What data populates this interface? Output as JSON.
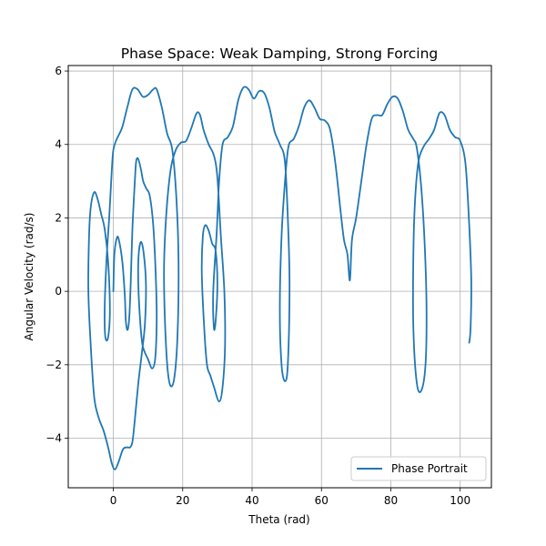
{
  "chart_data": {
    "type": "line",
    "title": "Phase Space: Weak Damping, Strong Forcing",
    "xlabel": "Theta (rad)",
    "ylabel": "Angular Velocity (rad/s)",
    "xlim": [
      -13,
      109
    ],
    "ylim": [
      -5.35,
      6.15
    ],
    "xticks": [
      0,
      20,
      40,
      60,
      80,
      100
    ],
    "yticks": [
      -4,
      -2,
      0,
      2,
      4,
      6
    ],
    "grid": true,
    "legend_position": "lower-right",
    "series": [
      {
        "name": "Phase Portrait",
        "color": "#1f77b4",
        "points": [
          [
            0,
            0
          ],
          [
            0.3,
            1.0
          ],
          [
            1,
            1.45
          ],
          [
            1.6,
            1.4
          ],
          [
            2.6,
            0.8
          ],
          [
            3.3,
            -0.1
          ],
          [
            3.6,
            -0.8
          ],
          [
            4.1,
            -1.05
          ],
          [
            4.6,
            -0.7
          ],
          [
            5,
            0.2
          ],
          [
            5.5,
            1.7
          ],
          [
            6.2,
            3.0
          ],
          [
            6.6,
            3.55
          ],
          [
            7.2,
            3.6
          ],
          [
            8,
            3.3
          ],
          [
            8.6,
            3.0
          ],
          [
            9.5,
            2.8
          ],
          [
            10.5,
            2.6
          ],
          [
            11.5,
            1.8
          ],
          [
            12.2,
            0.5
          ],
          [
            12.5,
            -0.7
          ],
          [
            12.1,
            -1.8
          ],
          [
            11.2,
            -2.1
          ],
          [
            10,
            -1.85
          ],
          [
            8.5,
            -1.5
          ],
          [
            7.8,
            -0.9
          ],
          [
            7.2,
            0.2
          ],
          [
            7.3,
            1.0
          ],
          [
            8,
            1.35
          ],
          [
            8.8,
            1.0
          ],
          [
            9.4,
            0.2
          ],
          [
            9.1,
            -0.9
          ],
          [
            8.2,
            -1.7
          ],
          [
            7.2,
            -2.5
          ],
          [
            6.2,
            -3.5
          ],
          [
            5.5,
            -4.1
          ],
          [
            4.8,
            -4.25
          ],
          [
            4.0,
            -4.25
          ],
          [
            2.8,
            -4.3
          ],
          [
            1.5,
            -4.65
          ],
          [
            0.5,
            -4.85
          ],
          [
            -0.4,
            -4.7
          ],
          [
            -1.5,
            -4.25
          ],
          [
            -2.8,
            -3.8
          ],
          [
            -4.2,
            -3.45
          ],
          [
            -5.5,
            -2.9
          ],
          [
            -6.5,
            -1.5
          ],
          [
            -7.2,
            0.0
          ],
          [
            -7.0,
            1.5
          ],
          [
            -6.5,
            2.3
          ],
          [
            -5.5,
            2.7
          ],
          [
            -4.5,
            2.5
          ],
          [
            -3.5,
            2.1
          ],
          [
            -2.5,
            1.7
          ],
          [
            -1.5,
            0.8
          ],
          [
            -1.0,
            -0.5
          ],
          [
            -1.5,
            -1.25
          ],
          [
            -2.3,
            -1.25
          ],
          [
            -2.5,
            -0.5
          ],
          [
            -2.0,
            0.8
          ],
          [
            -1.2,
            2.0
          ],
          [
            -0.5,
            3.2
          ],
          [
            0,
            3.85
          ],
          [
            1,
            4.15
          ],
          [
            2.5,
            4.45
          ],
          [
            4.0,
            5.0
          ],
          [
            5.5,
            5.5
          ],
          [
            7,
            5.5
          ],
          [
            8.5,
            5.3
          ],
          [
            10,
            5.35
          ],
          [
            11.5,
            5.5
          ],
          [
            12.5,
            5.5
          ],
          [
            14,
            5.0
          ],
          [
            15.5,
            4.3
          ],
          [
            17,
            3.85
          ],
          [
            18.2,
            2.5
          ],
          [
            18.8,
            0.8
          ],
          [
            18.5,
            -1.2
          ],
          [
            17.5,
            -2.4
          ],
          [
            16.2,
            -2.5
          ],
          [
            15.2,
            -1.5
          ],
          [
            14.6,
            0.5
          ],
          [
            15.2,
            2.0
          ],
          [
            16.5,
            3.3
          ],
          [
            18,
            3.85
          ],
          [
            19.5,
            4.05
          ],
          [
            21,
            4.1
          ],
          [
            22.5,
            4.45
          ],
          [
            24,
            4.85
          ],
          [
            25,
            4.8
          ],
          [
            26,
            4.4
          ],
          [
            27.5,
            4.0
          ],
          [
            29,
            3.7
          ],
          [
            30,
            3.1
          ],
          [
            31,
            1.5
          ],
          [
            32,
            0
          ],
          [
            32.2,
            -1.5
          ],
          [
            31.5,
            -2.6
          ],
          [
            30.5,
            -3.0
          ],
          [
            29,
            -2.6
          ],
          [
            28,
            -2.3
          ],
          [
            27,
            -2.0
          ],
          [
            26.2,
            -1.0
          ],
          [
            25.5,
            0.5
          ],
          [
            25.8,
            1.5
          ],
          [
            26.5,
            1.8
          ],
          [
            27.5,
            1.65
          ],
          [
            28.5,
            1.3
          ],
          [
            29.5,
            1.1
          ],
          [
            30,
            0.2
          ],
          [
            29.5,
            -0.8
          ],
          [
            29,
            -1.0
          ],
          [
            28.8,
            0.0
          ],
          [
            29.8,
            1.6
          ],
          [
            30.5,
            3.0
          ],
          [
            31.5,
            4.0
          ],
          [
            33,
            4.2
          ],
          [
            34.5,
            4.5
          ],
          [
            36,
            5.2
          ],
          [
            37.5,
            5.55
          ],
          [
            39,
            5.5
          ],
          [
            40.5,
            5.25
          ],
          [
            42,
            5.45
          ],
          [
            43.5,
            5.4
          ],
          [
            45,
            5.0
          ],
          [
            46.5,
            4.35
          ],
          [
            48,
            4.0
          ],
          [
            49.5,
            3.5
          ],
          [
            50.5,
            1.5
          ],
          [
            50.8,
            0
          ],
          [
            50.3,
            -2.0
          ],
          [
            49.5,
            -2.45
          ],
          [
            48.5,
            -2.0
          ],
          [
            48,
            -0.5
          ],
          [
            48.5,
            1.5
          ],
          [
            49.5,
            3.0
          ],
          [
            50.5,
            3.95
          ],
          [
            52,
            4.15
          ],
          [
            53.5,
            4.5
          ],
          [
            55,
            5.0
          ],
          [
            56.5,
            5.2
          ],
          [
            58,
            5.0
          ],
          [
            59.5,
            4.7
          ],
          [
            61,
            4.65
          ],
          [
            62.5,
            4.4
          ],
          [
            64,
            3.5
          ],
          [
            65.5,
            2.2
          ],
          [
            66.5,
            1.4
          ],
          [
            67.5,
            1.0
          ],
          [
            68.2,
            0.3
          ],
          [
            68.8,
            1.4
          ],
          [
            70,
            2.0
          ],
          [
            71.5,
            3.0
          ],
          [
            73,
            4.0
          ],
          [
            74.5,
            4.7
          ],
          [
            76,
            4.8
          ],
          [
            77.5,
            4.8
          ],
          [
            79,
            5.1
          ],
          [
            80.5,
            5.3
          ],
          [
            82,
            5.25
          ],
          [
            83.5,
            4.9
          ],
          [
            85,
            4.4
          ],
          [
            86.5,
            4.15
          ],
          [
            87.5,
            3.9
          ],
          [
            88.8,
            2.8
          ],
          [
            89.8,
            1.2
          ],
          [
            90.3,
            -0.5
          ],
          [
            90,
            -2.0
          ],
          [
            88.8,
            -2.7
          ],
          [
            87.5,
            -2.5
          ],
          [
            86.5,
            -1.0
          ],
          [
            86.5,
            1.0
          ],
          [
            87,
            2.5
          ],
          [
            88,
            3.55
          ],
          [
            89.5,
            3.95
          ],
          [
            91,
            4.15
          ],
          [
            92.5,
            4.4
          ],
          [
            94,
            4.85
          ],
          [
            95.5,
            4.8
          ],
          [
            97,
            4.4
          ],
          [
            98.5,
            4.2
          ],
          [
            100,
            4.1
          ],
          [
            101.5,
            3.5
          ],
          [
            102.5,
            2.0
          ],
          [
            103.2,
            0.3
          ],
          [
            103,
            -1.0
          ],
          [
            102.6,
            -1.4
          ]
        ]
      }
    ]
  }
}
